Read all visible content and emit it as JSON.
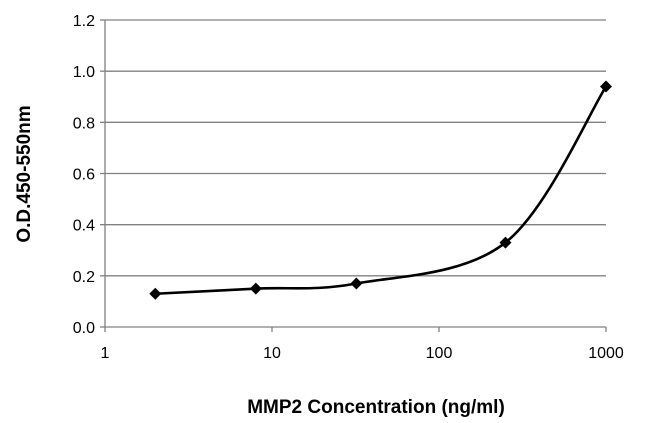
{
  "chart_data": {
    "type": "line",
    "title": "",
    "xlabel": "MMP2 Concentration (ng/ml)",
    "ylabel": "O.D.450-550nm",
    "x_scale": "log",
    "xlim": [
      1,
      1000
    ],
    "ylim": [
      0,
      1.2
    ],
    "x_ticks": [
      "1",
      "10",
      "100",
      "1000"
    ],
    "y_ticks": [
      "0.0",
      "0.2",
      "0.4",
      "0.6",
      "0.8",
      "1.0",
      "1.2"
    ],
    "grid": "horizontal",
    "legend": "none",
    "marker": "diamond",
    "smoothed": true,
    "color": "#000000",
    "series": [
      {
        "x": [
          2,
          8,
          32,
          250,
          1000
        ],
        "y": [
          0.13,
          0.15,
          0.17,
          0.33,
          0.94
        ]
      }
    ]
  }
}
